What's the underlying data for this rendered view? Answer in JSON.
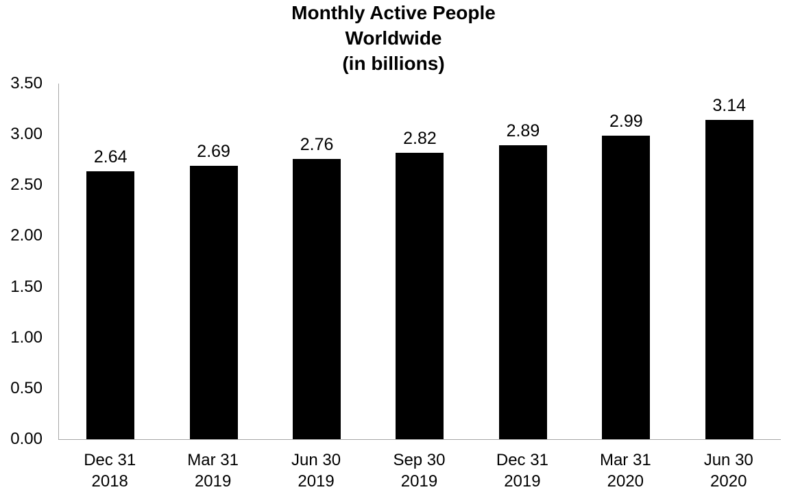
{
  "chart_data": {
    "type": "bar",
    "title": "Monthly Active People Worldwide (in billions)",
    "title_lines": [
      "Monthly Active People",
      "Worldwide",
      "(in billions)"
    ],
    "categories": [
      "Dec 31 2018",
      "Mar 31 2019",
      "Jun 30 2019",
      "Sep 30 2019",
      "Dec 31 2019",
      "Mar 31 2020",
      "Jun 30 2020"
    ],
    "x_tick_lines": [
      [
        "Dec 31",
        "2018"
      ],
      [
        "Mar 31",
        "2019"
      ],
      [
        "Jun 30",
        "2019"
      ],
      [
        "Sep 30",
        "2019"
      ],
      [
        "Dec 31",
        "2019"
      ],
      [
        "Mar 31",
        "2020"
      ],
      [
        "Jun 30",
        "2020"
      ]
    ],
    "values": [
      2.64,
      2.69,
      2.76,
      2.82,
      2.89,
      2.99,
      3.14
    ],
    "value_labels": [
      "2.64",
      "2.69",
      "2.76",
      "2.82",
      "2.89",
      "2.99",
      "3.14"
    ],
    "y_ticks": [
      "3.50",
      "3.00",
      "2.50",
      "2.00",
      "1.50",
      "1.00",
      "0.50",
      "0.00"
    ],
    "ylim": [
      0,
      3.5
    ],
    "xlabel": "",
    "ylabel": "",
    "grid": false,
    "legend": false,
    "bar_color": "#000000",
    "axis_color": "#a6a6a6",
    "text_color": "#000000"
  }
}
